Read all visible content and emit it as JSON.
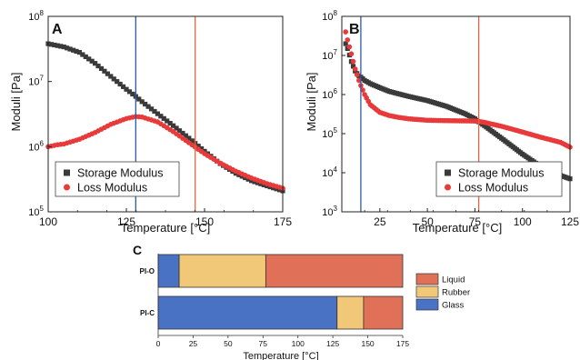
{
  "chart_data": [
    {
      "panel": "A",
      "type": "scatter",
      "xlabel": "Temperature [°C]",
      "ylabel": "Moduli [Pa]",
      "xlim": [
        100,
        175
      ],
      "ylim": [
        100000,
        100000000
      ],
      "yscale": "log",
      "xticks": [
        "100",
        "125",
        "150",
        "175"
      ],
      "yticks": [
        {
          "value": 100000,
          "base": "10",
          "exp": "5"
        },
        {
          "value": 1000000,
          "base": "10",
          "exp": "6"
        },
        {
          "value": 10000000,
          "base": "10",
          "exp": "7"
        },
        {
          "value": 100000000,
          "base": "10",
          "exp": "8"
        }
      ],
      "vlines": [
        {
          "x": 128,
          "color": "#2c5aa0"
        },
        {
          "x": 147,
          "color": "#e8643c"
        }
      ],
      "legend_position": "bottom-left",
      "series": [
        {
          "name": "Storage Modulus",
          "color": "#3a3a3a",
          "marker": "square",
          "x": [
            100,
            105,
            110,
            115,
            120,
            125,
            128,
            130,
            135,
            140,
            145,
            150,
            155,
            160,
            165,
            170,
            175
          ],
          "y": [
            38000000,
            34000000,
            28000000,
            19000000,
            12000000,
            7600000,
            5900000,
            4900000,
            3200000,
            2100000,
            1350000,
            850000,
            550000,
            390000,
            300000,
            250000,
            210000
          ]
        },
        {
          "name": "Loss Modulus",
          "color": "#e83a3a",
          "marker": "circle",
          "x": [
            100,
            103,
            105,
            110,
            115,
            120,
            125,
            128,
            130,
            135,
            140,
            145,
            150,
            155,
            160,
            165,
            170,
            175
          ],
          "y": [
            1000000,
            1070000,
            1100000,
            1300000,
            1650000,
            2200000,
            2700000,
            2900000,
            2850000,
            2400000,
            1700000,
            1150000,
            780000,
            560000,
            420000,
            330000,
            270000,
            230000
          ]
        }
      ]
    },
    {
      "panel": "B",
      "type": "scatter",
      "xlabel": "Temperature [°C]",
      "ylabel": "Moduli [Pa]",
      "xlim": [
        5,
        125
      ],
      "ylim": [
        1000,
        100000000
      ],
      "yscale": "log",
      "xticks": [
        "25",
        "50",
        "75",
        "100",
        "125"
      ],
      "yticks": [
        {
          "value": 1000,
          "base": "10",
          "exp": "3"
        },
        {
          "value": 10000,
          "base": "10",
          "exp": "4"
        },
        {
          "value": 100000,
          "base": "10",
          "exp": "5"
        },
        {
          "value": 1000000,
          "base": "10",
          "exp": "6"
        },
        {
          "value": 10000000,
          "base": "10",
          "exp": "7"
        },
        {
          "value": 100000000,
          "base": "10",
          "exp": "8"
        }
      ],
      "vlines": [
        {
          "x": 15,
          "color": "#2c5aa0"
        },
        {
          "x": 77,
          "color": "#e8643c"
        }
      ],
      "legend_position": "bottom-right",
      "series": [
        {
          "name": "Storage Modulus",
          "color": "#3a3a3a",
          "marker": "square",
          "x": [
            7,
            8,
            10,
            12,
            14,
            15,
            17,
            20,
            25,
            30,
            40,
            50,
            60,
            70,
            75,
            77,
            80,
            90,
            100,
            110,
            120,
            125
          ],
          "y": [
            20000000,
            15000000,
            7000000,
            4000000,
            3000000,
            2800000,
            2300000,
            1900000,
            1500000,
            1200000,
            900000,
            700000,
            500000,
            320000,
            240000,
            200000,
            160000,
            70000,
            30000,
            14000,
            8500,
            7000
          ]
        },
        {
          "name": "Loss Modulus",
          "color": "#e83a3a",
          "marker": "circle",
          "x": [
            7,
            8,
            10,
            12,
            14,
            15,
            17,
            20,
            25,
            30,
            35,
            40,
            50,
            60,
            70,
            75,
            77,
            80,
            90,
            100,
            110,
            120,
            125
          ],
          "y": [
            40000000,
            25000000,
            11000000,
            4500000,
            2300000,
            1700000,
            1000000,
            550000,
            350000,
            290000,
            260000,
            240000,
            220000,
            215000,
            212000,
            210000,
            205000,
            195000,
            150000,
            110000,
            80000,
            60000,
            45000
          ]
        }
      ]
    },
    {
      "panel": "C",
      "type": "bar",
      "orientation": "horizontal",
      "stacked": true,
      "xlabel": "Temperature [°C]",
      "xlim": [
        0,
        175
      ],
      "xticks": [
        "0",
        "25",
        "50",
        "75",
        "100",
        "125",
        "150",
        "175"
      ],
      "legend_position": "right",
      "categories": [
        "PI-O",
        "PI-C"
      ],
      "series": [
        {
          "name": "Glass",
          "color": "#4a72c4",
          "values": [
            15,
            128
          ]
        },
        {
          "name": "Rubber",
          "color": "#f0c878",
          "values": [
            62,
            19
          ]
        },
        {
          "name": "Liquid",
          "color": "#e07058",
          "values": [
            98,
            28
          ]
        }
      ]
    }
  ]
}
